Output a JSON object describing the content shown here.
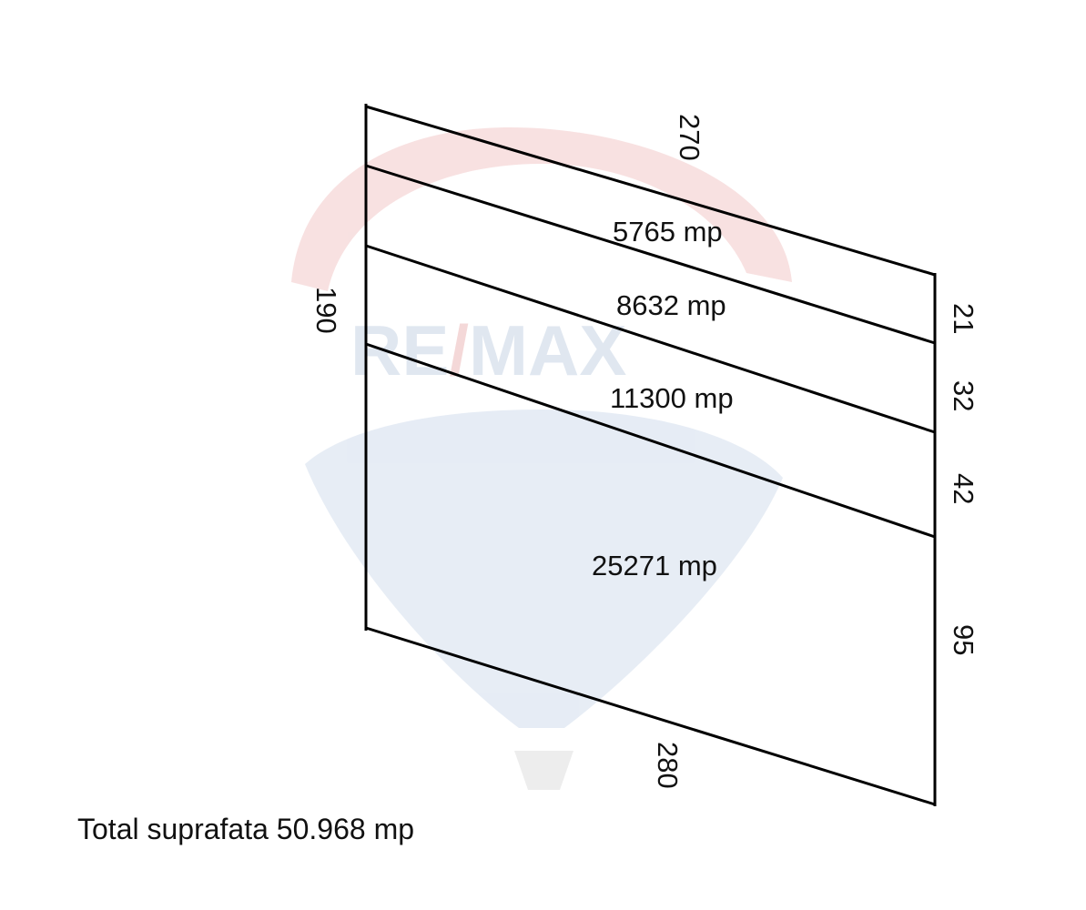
{
  "watermark": {
    "text": "RE/MAX",
    "colors": {
      "red": "#f3d2d2",
      "blue": "#dbe4ef"
    }
  },
  "dimensions": {
    "top": "270",
    "left": "190",
    "bottom": "280",
    "right_segments": [
      "21",
      "32",
      "42",
      "95"
    ]
  },
  "plots": [
    {
      "area": "5765 mp"
    },
    {
      "area": "8632 mp"
    },
    {
      "area": "11300 mp"
    },
    {
      "area": "25271 mp"
    }
  ],
  "total": "Total suprafata 50.968 mp",
  "line_color": "#000000"
}
